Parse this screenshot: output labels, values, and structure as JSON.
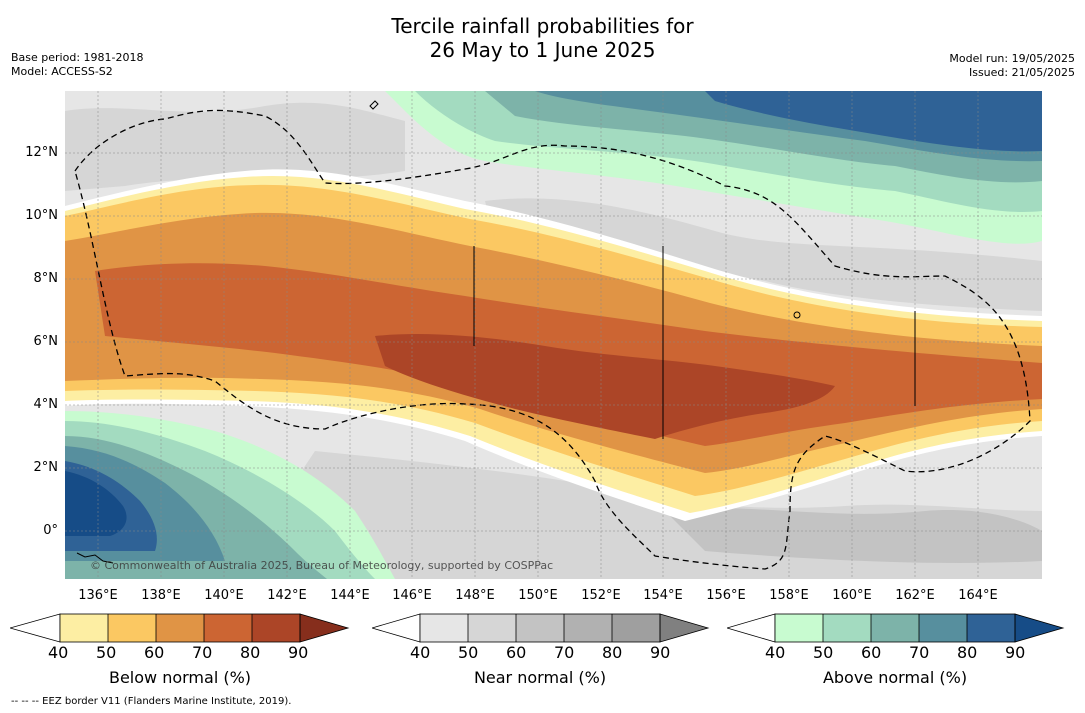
{
  "title_line1": "Tercile rainfall probabilities for",
  "title_line2": "26 May to 1 June 2025",
  "base_period": "Base period: 1981-2018",
  "model": "Model: ACCESS-S2",
  "model_run": "Model run: 19/05/2025",
  "issued": "Issued: 21/05/2025",
  "copyright": "© Commonwealth of Australia 2025, Bureau of Meteorology, supported by COSPPac",
  "footnote": "--  --  -- EEZ border V11 (Flanders Marine Institute, 2019).",
  "x_ticks": [
    "136°E",
    "138°E",
    "140°E",
    "142°E",
    "144°E",
    "146°E",
    "148°E",
    "150°E",
    "152°E",
    "154°E",
    "156°E",
    "158°E",
    "160°E",
    "162°E",
    "164°E"
  ],
  "y_ticks": [
    "12°N",
    "10°N",
    "8°N",
    "6°N",
    "4°N",
    "2°N",
    "0°"
  ],
  "colorbars": [
    {
      "title": "Below normal (%)",
      "labels": [
        "40",
        "50",
        "60",
        "70",
        "80",
        "90"
      ],
      "colors": [
        "#ffffff",
        "#fdeea3",
        "#fbc862",
        "#e09445",
        "#cc6533",
        "#ac4527",
        "#862e1c"
      ]
    },
    {
      "title": "Near normal (%)",
      "labels": [
        "40",
        "50",
        "60",
        "70",
        "80",
        "90"
      ],
      "colors": [
        "#ffffff",
        "#e6e6e6",
        "#d6d6d6",
        "#c3c3c3",
        "#b1b1b1",
        "#9f9f9f",
        "#808080"
      ]
    },
    {
      "title": "Above normal (%)",
      "labels": [
        "40",
        "50",
        "60",
        "70",
        "80",
        "90"
      ],
      "colors": [
        "#ffffff",
        "#c8fbd0",
        "#a3dbc0",
        "#7db3a9",
        "#578f9e",
        "#2f6296",
        "#164c87"
      ]
    }
  ]
}
